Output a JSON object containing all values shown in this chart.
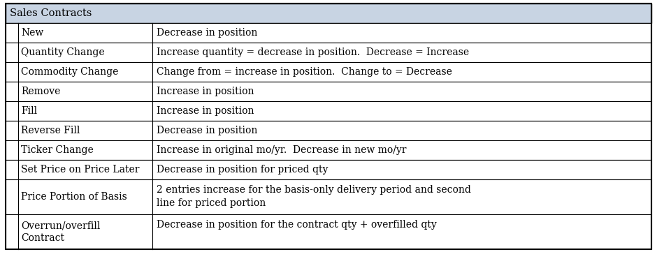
{
  "title": "Sales Contracts",
  "header_bg": "#c8d4e3",
  "row_bg": "#ffffff",
  "border_color": "#000000",
  "title_fontsize": 10.5,
  "cell_fontsize": 10,
  "rows": [
    {
      "scenario": "New",
      "description": "Decrease in position",
      "multiline": false
    },
    {
      "scenario": "Quantity Change",
      "description": "Increase quantity = decrease in position.  Decrease = Increase",
      "multiline": false
    },
    {
      "scenario": "Commodity Change",
      "description": "Change from = increase in position.  Change to = Decrease",
      "multiline": false
    },
    {
      "scenario": "Remove",
      "description": "Increase in position",
      "multiline": false
    },
    {
      "scenario": "Fill",
      "description": "Increase in position",
      "multiline": false
    },
    {
      "scenario": "Reverse Fill",
      "description": "Decrease in position",
      "multiline": false
    },
    {
      "scenario": "Ticker Change",
      "description": "Increase in original mo/yr.  Decrease in new mo/yr",
      "multiline": false
    },
    {
      "scenario": "Set Price on Price Later",
      "description": "Decrease in position for priced qty",
      "multiline": false
    },
    {
      "scenario": "Price Portion of Basis",
      "description": "2 entries increase for the basis-only delivery period and second\nline for priced portion",
      "multiline": true
    },
    {
      "scenario": "Overrun/overfill\nContract",
      "description": "Decrease in position for the contract qty + overfilled qty",
      "multiline": true
    }
  ]
}
